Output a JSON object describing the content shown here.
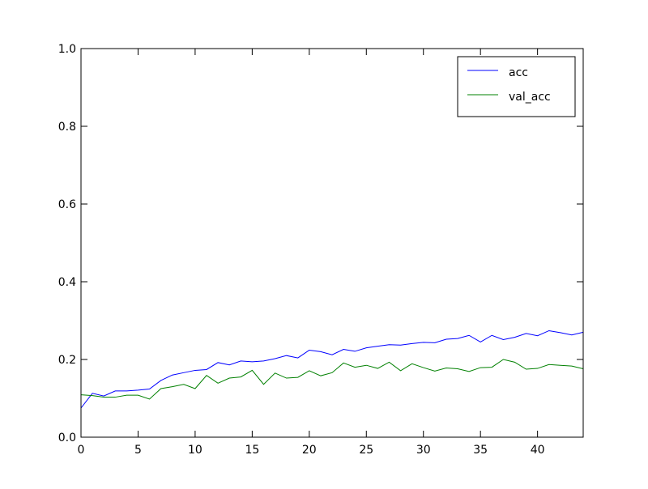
{
  "chart_data": {
    "type": "line",
    "x": [
      0,
      1,
      2,
      3,
      4,
      5,
      6,
      7,
      8,
      9,
      10,
      11,
      12,
      13,
      14,
      15,
      16,
      17,
      18,
      19,
      20,
      21,
      22,
      23,
      24,
      25,
      26,
      27,
      28,
      29,
      30,
      31,
      32,
      33,
      34,
      35,
      36,
      37,
      38,
      39,
      40,
      41,
      42,
      43,
      44
    ],
    "series": [
      {
        "name": "acc",
        "color": "#0000ff",
        "values": [
          0.075,
          0.113,
          0.106,
          0.119,
          0.119,
          0.121,
          0.124,
          0.146,
          0.16,
          0.166,
          0.172,
          0.174,
          0.192,
          0.186,
          0.196,
          0.194,
          0.196,
          0.202,
          0.21,
          0.204,
          0.224,
          0.22,
          0.212,
          0.226,
          0.221,
          0.23,
          0.234,
          0.238,
          0.237,
          0.241,
          0.244,
          0.243,
          0.252,
          0.254,
          0.262,
          0.245,
          0.262,
          0.251,
          0.257,
          0.267,
          0.261,
          0.274,
          0.269,
          0.263,
          0.27
        ]
      },
      {
        "name": "val_acc",
        "color": "#008000",
        "values": [
          0.109,
          0.107,
          0.103,
          0.103,
          0.108,
          0.108,
          0.098,
          0.125,
          0.13,
          0.136,
          0.125,
          0.159,
          0.139,
          0.152,
          0.155,
          0.172,
          0.136,
          0.165,
          0.152,
          0.154,
          0.171,
          0.158,
          0.166,
          0.191,
          0.18,
          0.185,
          0.177,
          0.193,
          0.171,
          0.189,
          0.179,
          0.17,
          0.178,
          0.176,
          0.169,
          0.179,
          0.18,
          0.2,
          0.193,
          0.175,
          0.177,
          0.187,
          0.185,
          0.183,
          0.176
        ]
      }
    ],
    "xlim": [
      0,
      44
    ],
    "ylim": [
      0,
      1.0
    ],
    "xticks": [
      0,
      5,
      10,
      15,
      20,
      25,
      30,
      35,
      40
    ],
    "xtick_labels": [
      "0",
      "5",
      "10",
      "15",
      "20",
      "25",
      "30",
      "35",
      "40"
    ],
    "yticks": [
      0,
      0.2,
      0.4,
      0.6,
      0.8,
      1.0
    ],
    "ytick_labels": [
      "0.0",
      "0.2",
      "0.4",
      "0.6",
      "0.8",
      "1.0"
    ],
    "title": "",
    "xlabel": "",
    "ylabel": "",
    "grid": false,
    "legend_position": "top-right"
  }
}
